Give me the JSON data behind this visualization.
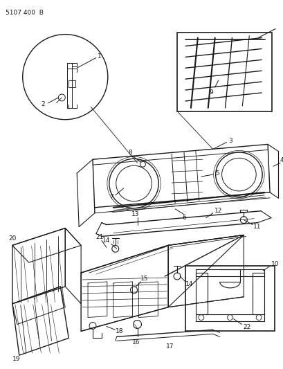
{
  "title": "5107 400  B",
  "bg_color": "#ffffff",
  "line_color": "#1a1a1a",
  "fig_width": 4.1,
  "fig_height": 5.33,
  "dpi": 100
}
